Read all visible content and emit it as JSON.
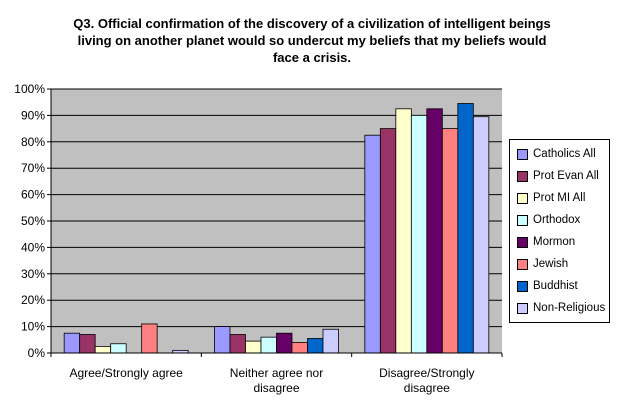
{
  "chart_data": {
    "type": "bar",
    "title": [
      "Q3. Official confirmation of the discovery of a civilization of intelligent beings",
      "living on another planet would so undercut my beliefs that my beliefs would",
      "face a crisis."
    ],
    "xlabel": "",
    "ylabel": "",
    "ylim": [
      0,
      100
    ],
    "yticks": [
      "0%",
      "10%",
      "20%",
      "30%",
      "40%",
      "50%",
      "60%",
      "70%",
      "80%",
      "90%",
      "100%"
    ],
    "grid": true,
    "legend_position": "right",
    "categories": [
      [
        "Agree/Strongly agree"
      ],
      [
        "Neither agree nor",
        "disagree"
      ],
      [
        "Disagree/Strongly",
        "disagree"
      ]
    ],
    "series": [
      {
        "name": "Catholics All",
        "color": "#9999ff",
        "values": [
          7.5,
          10,
          82.5
        ]
      },
      {
        "name": "Prot Evan All",
        "color": "#993366",
        "values": [
          7,
          7,
          85
        ]
      },
      {
        "name": "Prot MI All",
        "color": "#ffffcc",
        "values": [
          2.5,
          4.5,
          92.5
        ]
      },
      {
        "name": "Orthodox",
        "color": "#ccffff",
        "values": [
          3.5,
          6,
          90
        ]
      },
      {
        "name": "Mormon",
        "color": "#660066",
        "values": [
          0,
          7.5,
          92.5
        ]
      },
      {
        "name": "Jewish",
        "color": "#ff8080",
        "values": [
          11,
          4,
          85
        ]
      },
      {
        "name": "Buddhist",
        "color": "#0066cc",
        "values": [
          0,
          5.5,
          94.5
        ]
      },
      {
        "name": "Non-Religious",
        "color": "#ccccff",
        "values": [
          1,
          9,
          89.5
        ]
      }
    ],
    "plot_background": "#c0c0c0"
  }
}
